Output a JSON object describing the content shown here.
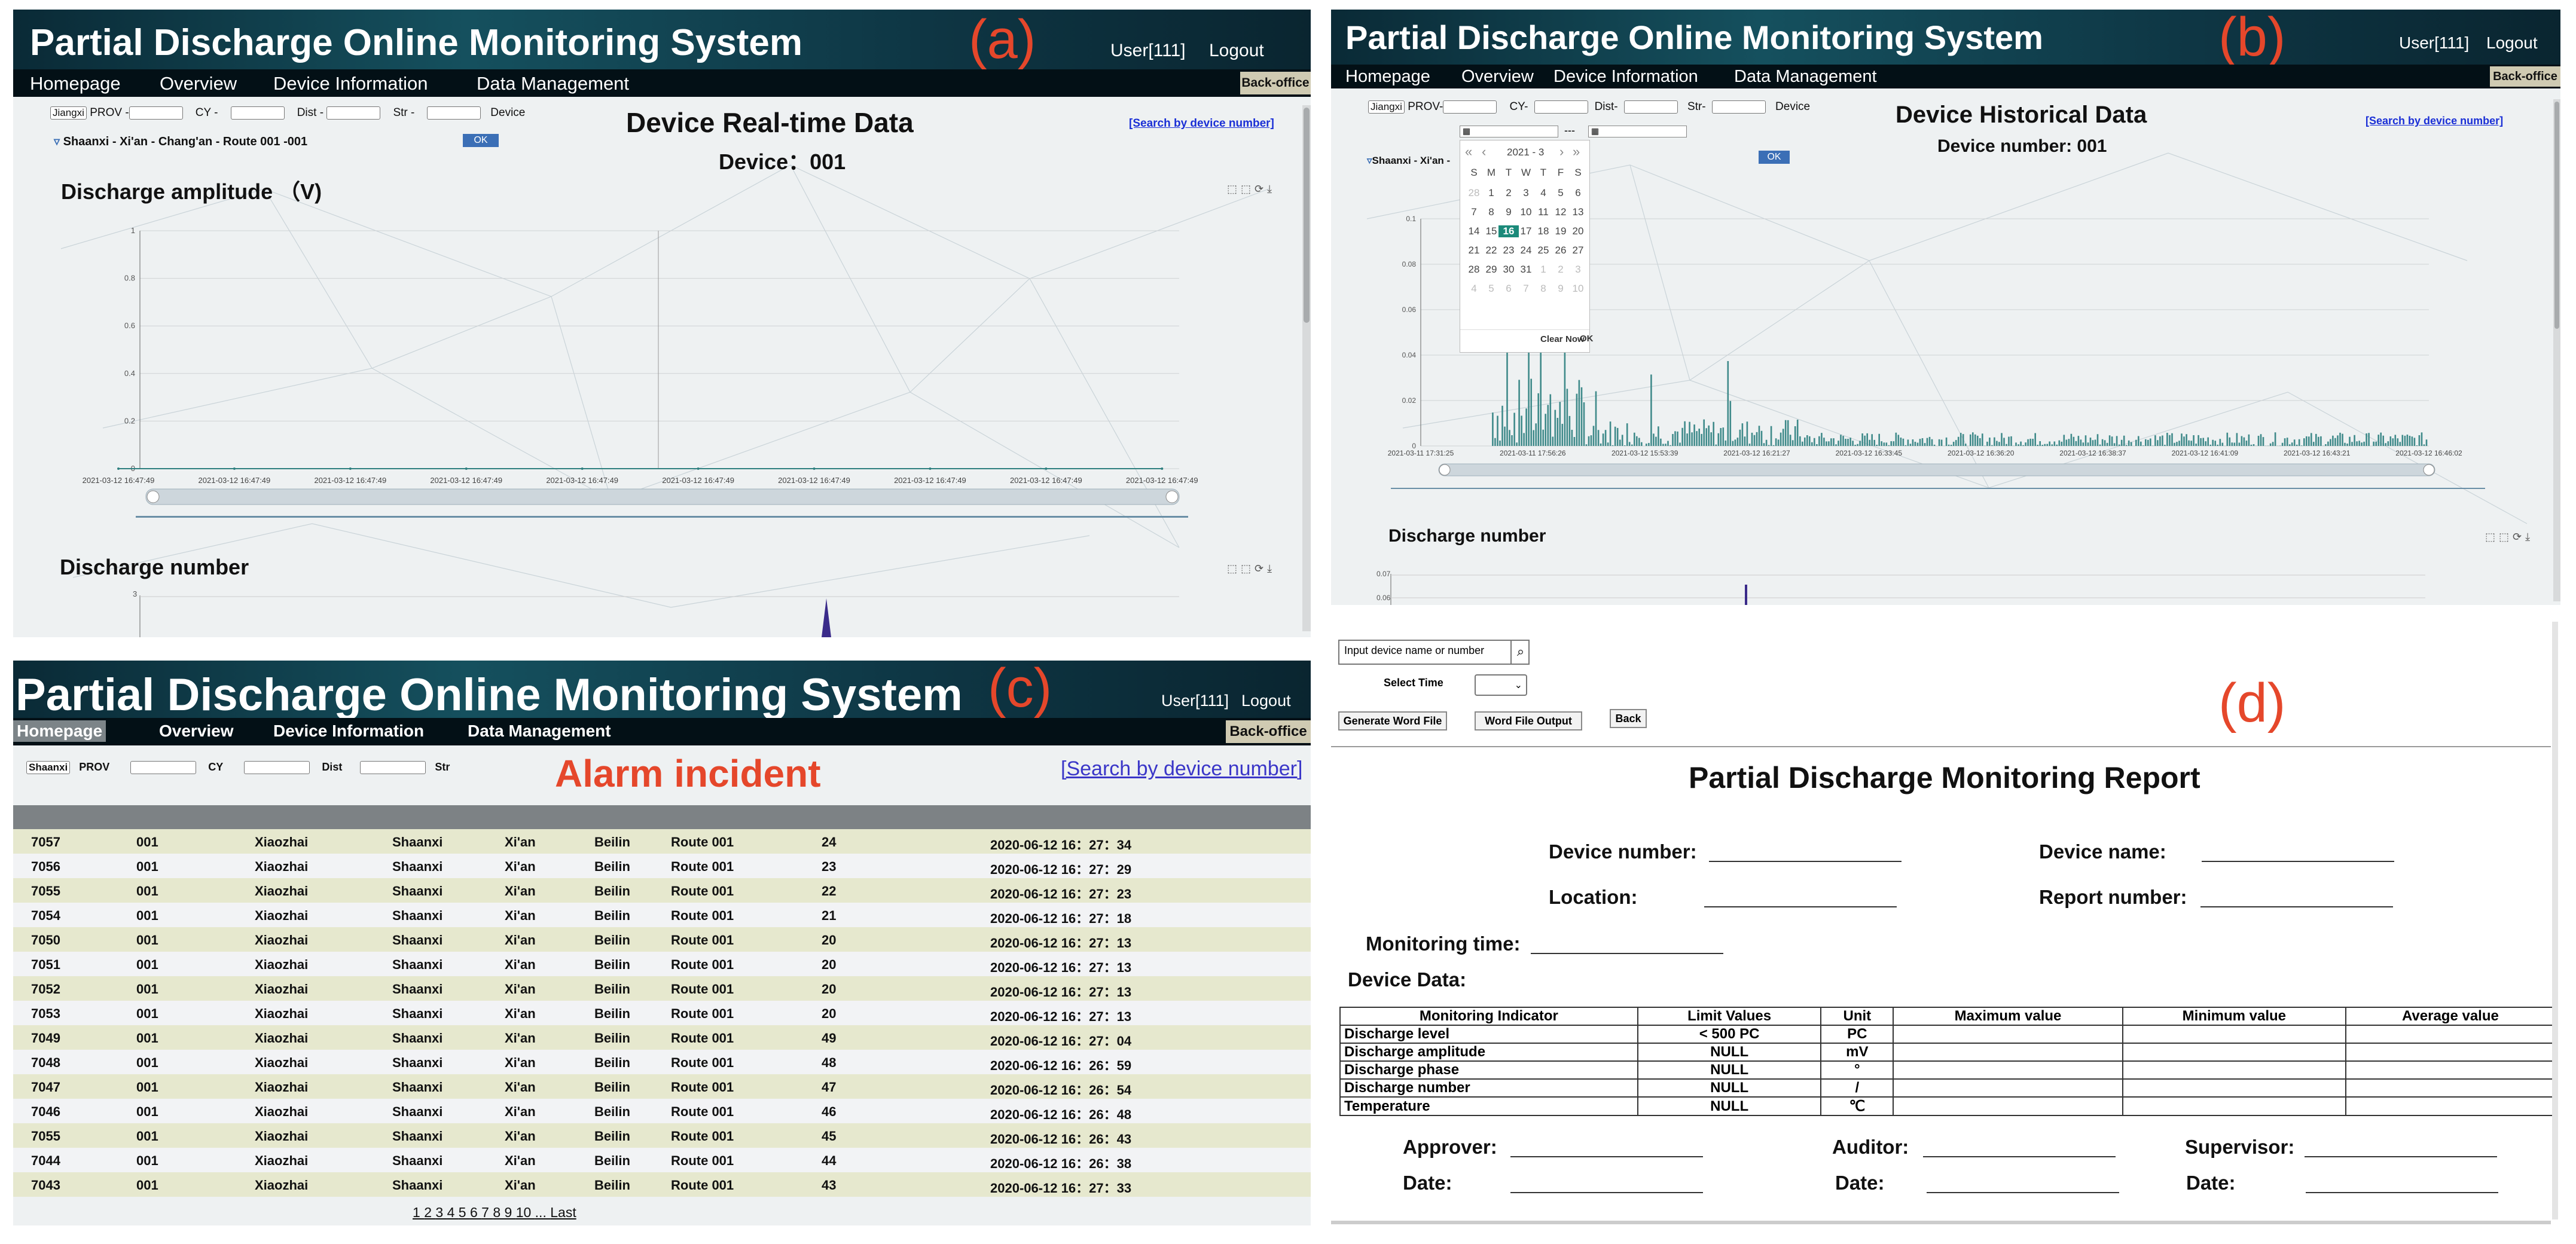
{
  "app": {
    "title": "Partial Discharge Online Monitoring System",
    "user": "User[111]",
    "logout": "Logout",
    "back_office": "Back-office",
    "nav": [
      "Homepage",
      "Overview",
      "Device Information",
      "Data Management"
    ]
  },
  "panel_labels": {
    "a": "(a)",
    "b": "(b)",
    "c": "(c)",
    "d": "(d)"
  },
  "filters": {
    "province_sel": "Jiangxi",
    "c_province_sel": "Shaanxi",
    "prov": "PROV -",
    "cy": "CY -",
    "dist": "Dist -",
    "str": "Str -",
    "device": "Device",
    "prov_b": "PROV-",
    "cy_b": "CY-",
    "dist_b": "Dist-",
    "str_b": "Str-",
    "prov_c": "PROV",
    "cy_c": "CY",
    "dist_c": "Dist",
    "str_c": "Str",
    "ok": "OK",
    "search_link": "[Search by device number]"
  },
  "panel_a": {
    "heading": "Device Real-time Data",
    "device": "Device：001",
    "tree_item": "Shaanxi - Xi'an - Chang'an - Route 001 -001",
    "chart1_title": "Discharge amplitude （V)",
    "chart2_title": "Discharge number",
    "chart_data": {
      "type": "line",
      "title": "Discharge amplitude （V)",
      "ylim": [
        0,
        1
      ],
      "yticks": [
        "1",
        "0.8",
        "0.6",
        "0.4",
        "0.2",
        "0"
      ],
      "x": [
        "2021-03-12 16:47:49",
        "2021-03-12 16:47:49",
        "2021-03-12 16:47:49",
        "2021-03-12 16:47:49",
        "2021-03-12 16:47:49",
        "2021-03-12 16:47:49",
        "2021-03-12 16:47:49",
        "2021-03-12 16:47:49",
        "2021-03-12 16:47:49",
        "2021-03-12 16:47:49"
      ],
      "values": [
        0,
        0,
        0,
        0,
        0,
        0,
        0,
        0,
        0,
        0
      ]
    },
    "chart2_ytick": "3"
  },
  "panel_b": {
    "heading": "Device Historical Data",
    "device": "Device number: 001",
    "tree_item": "Shaanxi - Xi'an -",
    "chart2_title": "Discharge number",
    "calendar": {
      "month": "2021 - 3",
      "days_header": [
        "S",
        "M",
        "T",
        "W",
        "T",
        "F",
        "S"
      ],
      "weeks": [
        [
          "28",
          "1",
          "2",
          "3",
          "4",
          "5",
          "6"
        ],
        [
          "7",
          "8",
          "9",
          "10",
          "11",
          "12",
          "13"
        ],
        [
          "14",
          "15",
          "16",
          "17",
          "18",
          "19",
          "20"
        ],
        [
          "21",
          "22",
          "23",
          "24",
          "25",
          "26",
          "27"
        ],
        [
          "28",
          "29",
          "30",
          "31",
          "1",
          "2",
          "3"
        ],
        [
          "4",
          "5",
          "6",
          "7",
          "8",
          "9",
          "10"
        ]
      ],
      "selected": "16",
      "clear": "Clear",
      "now": "Now",
      "ok": "OK"
    },
    "chart_data": {
      "type": "bar",
      "ylim": [
        0,
        0.1
      ],
      "yticks": [
        "0.1",
        "0.08",
        "0.06",
        "0.04",
        "0.02",
        "0"
      ],
      "x": [
        "2021-03-11 17:31:25",
        "2021-03-11 17:56:26",
        "2021-03-12 15:53:39",
        "2021-03-12 16:21:27",
        "2021-03-12 16:33:45",
        "2021-03-12 16:36:20",
        "2021-03-12 16:38:37",
        "2021-03-12 16:41:09",
        "2021-03-12 16:43:21",
        "2021-03-12 16:46:02"
      ]
    },
    "chart2_yticks": [
      "0.07",
      "0.06"
    ]
  },
  "panel_c": {
    "heading": "Alarm incident",
    "rows": [
      [
        "7057",
        "001",
        "Xiaozhai",
        "Shaanxi",
        "Xi'an",
        "Beilin",
        "Route 001",
        "24",
        "2020-06-12 16：27：34"
      ],
      [
        "7056",
        "001",
        "Xiaozhai",
        "Shaanxi",
        "Xi'an",
        "Beilin",
        "Route 001",
        "23",
        "2020-06-12 16：27：29"
      ],
      [
        "7055",
        "001",
        "Xiaozhai",
        "Shaanxi",
        "Xi'an",
        "Beilin",
        "Route 001",
        "22",
        "2020-06-12 16：27：23"
      ],
      [
        "7054",
        "001",
        "Xiaozhai",
        "Shaanxi",
        "Xi'an",
        "Beilin",
        "Route 001",
        "21",
        "2020-06-12 16：27：18"
      ],
      [
        "7050",
        "001",
        "Xiaozhai",
        "Shaanxi",
        "Xi'an",
        "Beilin",
        "Route 001",
        "20",
        "2020-06-12 16：27：13"
      ],
      [
        "7051",
        "001",
        "Xiaozhai",
        "Shaanxi",
        "Xi'an",
        "Beilin",
        "Route 001",
        "20",
        "2020-06-12 16：27：13"
      ],
      [
        "7052",
        "001",
        "Xiaozhai",
        "Shaanxi",
        "Xi'an",
        "Beilin",
        "Route 001",
        "20",
        "2020-06-12 16：27：13"
      ],
      [
        "7053",
        "001",
        "Xiaozhai",
        "Shaanxi",
        "Xi'an",
        "Beilin",
        "Route 001",
        "20",
        "2020-06-12 16：27：13"
      ],
      [
        "7049",
        "001",
        "Xiaozhai",
        "Shaanxi",
        "Xi'an",
        "Beilin",
        "Route 001",
        "49",
        "2020-06-12 16：27：04"
      ],
      [
        "7048",
        "001",
        "Xiaozhai",
        "Shaanxi",
        "Xi'an",
        "Beilin",
        "Route 001",
        "48",
        "2020-06-12 16：26：59"
      ],
      [
        "7047",
        "001",
        "Xiaozhai",
        "Shaanxi",
        "Xi'an",
        "Beilin",
        "Route 001",
        "47",
        "2020-06-12 16：26：54"
      ],
      [
        "7046",
        "001",
        "Xiaozhai",
        "Shaanxi",
        "Xi'an",
        "Beilin",
        "Route 001",
        "46",
        "2020-06-12 16：26：48"
      ],
      [
        "7055",
        "001",
        "Xiaozhai",
        "Shaanxi",
        "Xi'an",
        "Beilin",
        "Route 001",
        "45",
        "2020-06-12 16：26：43"
      ],
      [
        "7044",
        "001",
        "Xiaozhai",
        "Shaanxi",
        "Xi'an",
        "Beilin",
        "Route 001",
        "44",
        "2020-06-12 16：26：38"
      ],
      [
        "7043",
        "001",
        "Xiaozhai",
        "Shaanxi",
        "Xi'an",
        "Beilin",
        "Route 001",
        "43",
        "2020-06-12 16：27：33"
      ]
    ],
    "pager": [
      "1",
      "2",
      "3",
      "4",
      "5",
      "6",
      "7",
      "8",
      "9",
      "10",
      "...",
      "Last"
    ]
  },
  "panel_d": {
    "search_placeholder": "Input device name or number",
    "select_time": "Select Time",
    "gen_word": "Generate Word File",
    "word_output": "Word File Output",
    "back": "Back",
    "report_title": "Partial Discharge Monitoring Report",
    "device_number": "Device number:",
    "device_name": "Device name:",
    "location": "Location:",
    "report_number": "Report number:",
    "monitoring_time": "Monitoring time:",
    "device_data": "Device Data:",
    "table_headers": [
      "Monitoring Indicator",
      "Limit Values",
      "Unit",
      "Maximum value",
      "Minimum value",
      "Average value"
    ],
    "table_rows": [
      [
        "Discharge level",
        "< 500 PC",
        "PC"
      ],
      [
        "Discharge amplitude",
        "NULL",
        "mV"
      ],
      [
        "Discharge phase",
        "NULL",
        "°"
      ],
      [
        "Discharge number",
        "NULL",
        "/"
      ],
      [
        "Temperature",
        "NULL",
        "℃"
      ]
    ],
    "approver": "Approver:",
    "auditor": "Auditor:",
    "supervisor": "Supervisor:",
    "date": "Date:"
  },
  "colors": {
    "header": "#0c2f3c",
    "nav": "#031016",
    "accent_red": "#e5472b",
    "series": "#2e7f7f",
    "link": "#1a2fd6",
    "row_a": "#e6e8ce",
    "row_b": "#f2f3f5"
  }
}
